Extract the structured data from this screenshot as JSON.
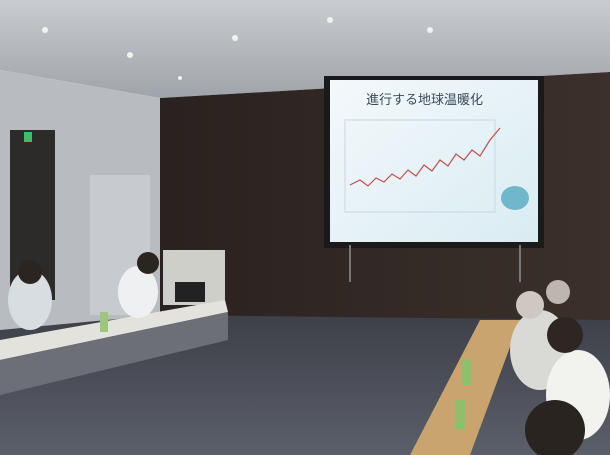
{
  "slide": {
    "title": "進行する地球温暖化"
  }
}
